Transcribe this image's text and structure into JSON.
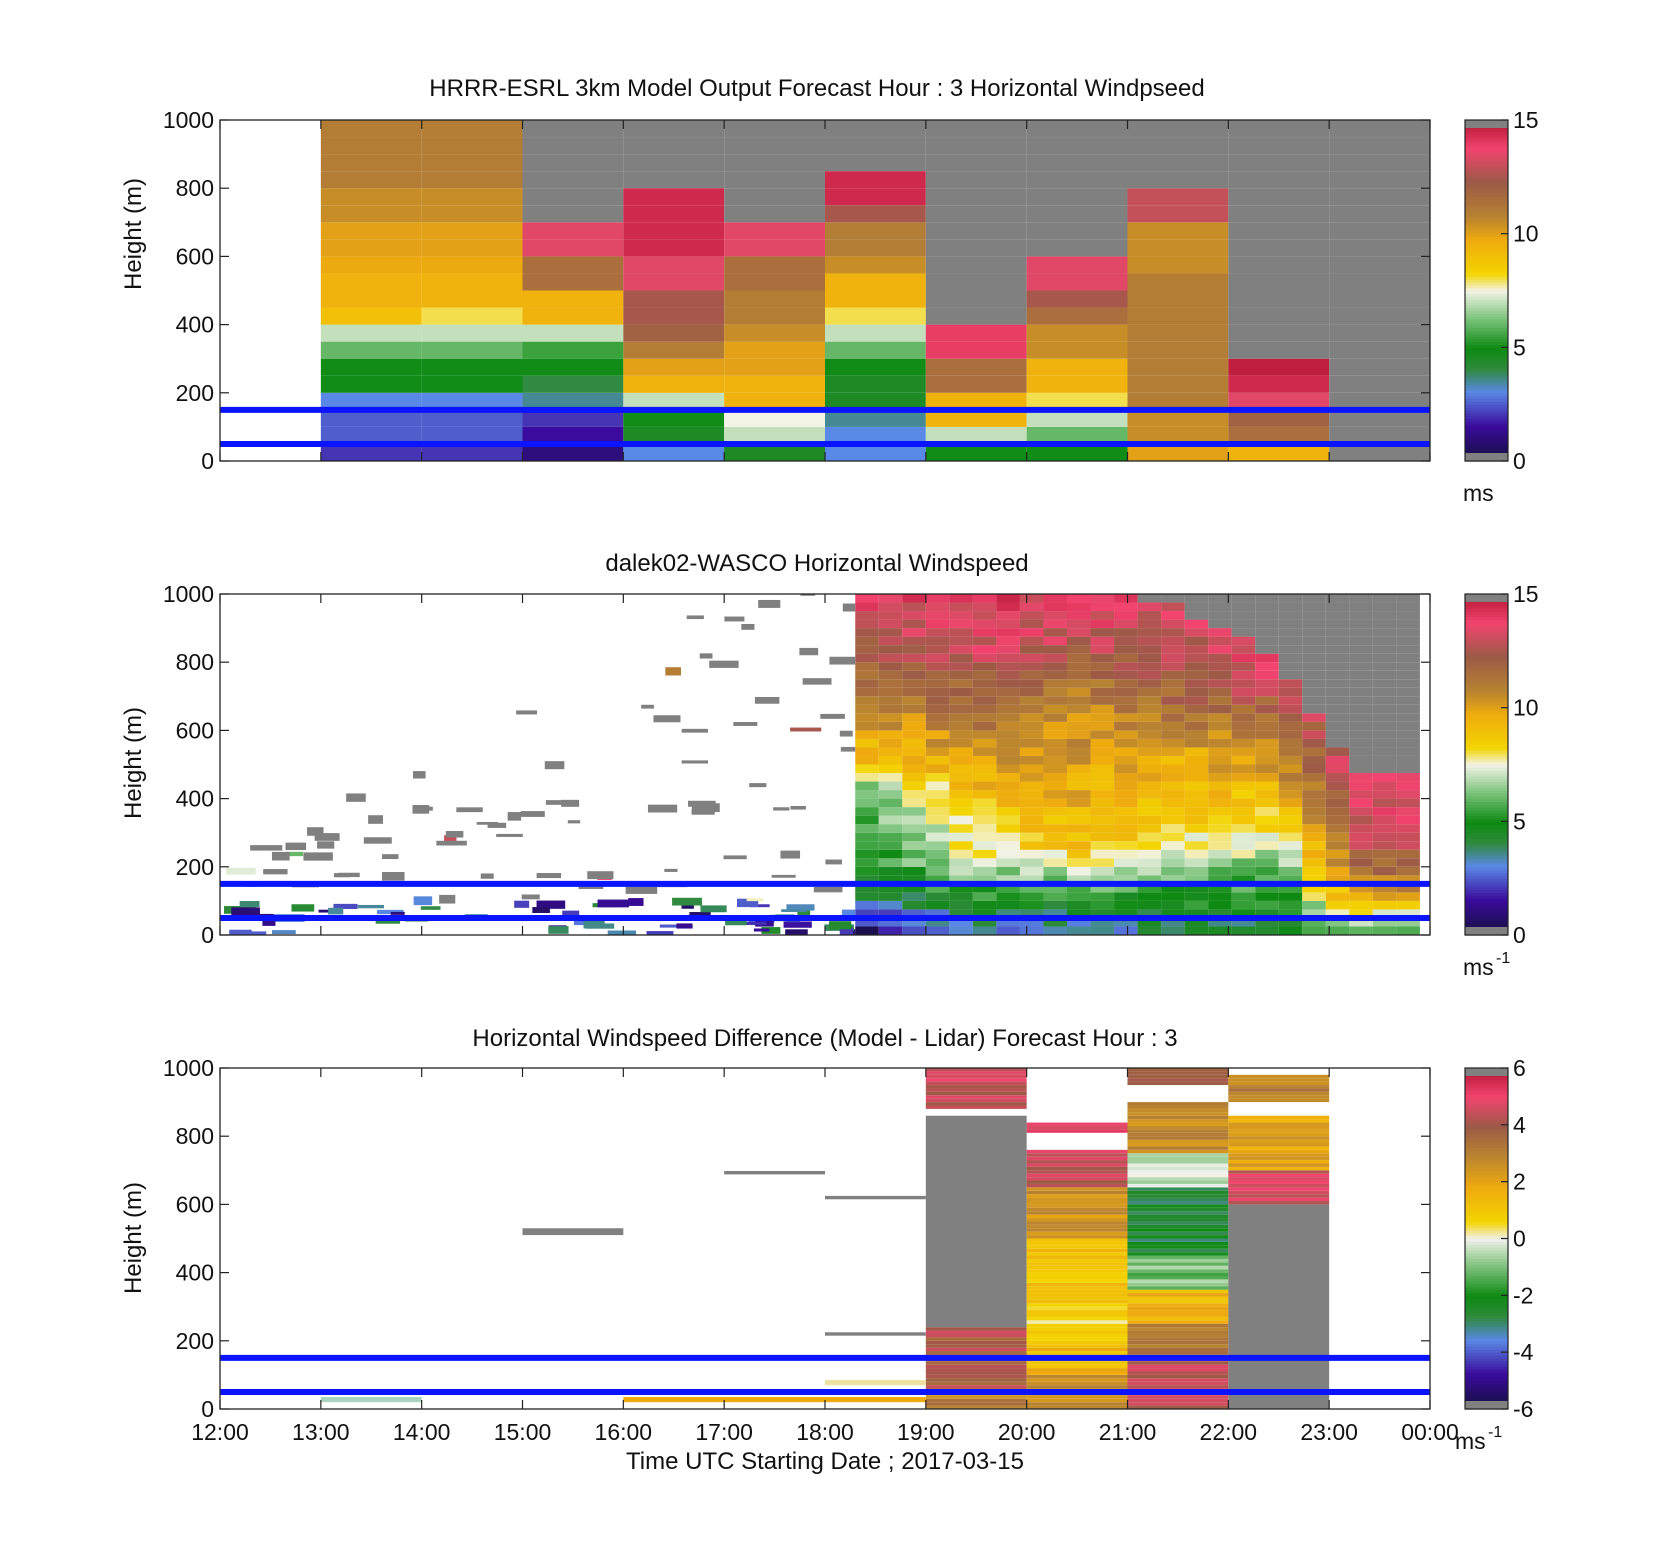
{
  "figure": {
    "xlabel": "Time UTC  Starting Date ; 2017-03-15",
    "x_tick_labels": [
      "12:00",
      "13:00",
      "14:00",
      "15:00",
      "16:00",
      "17:00",
      "18:00",
      "19:00",
      "20:00",
      "21:00",
      "22:00",
      "23:00",
      "00:00"
    ]
  },
  "panels": [
    {
      "title": "HRRR-ESRL 3km Model Output   Forecast Hour : 3 Horizontal Windpseed",
      "ylabel": "Height (m)",
      "y_tick_labels": [
        "0",
        "200",
        "400",
        "600",
        "800",
        "1000"
      ],
      "colorbar": {
        "tick_labels": [
          "0",
          "5",
          "10",
          "15"
        ],
        "unit": "ms",
        "unit_sup": ""
      }
    },
    {
      "title": "dalek02-WASCO  Horizontal Windspeed",
      "ylabel": "Height (m)",
      "y_tick_labels": [
        "0",
        "200",
        "400",
        "600",
        "800",
        "1000"
      ],
      "colorbar": {
        "tick_labels": [
          "0",
          "5",
          "10",
          "15"
        ],
        "unit": "ms",
        "unit_sup": "-1"
      }
    },
    {
      "title": "Horizontal Windspeed Difference (Model - Lidar) Forecast Hour : 3",
      "ylabel": "Height (m)",
      "y_tick_labels": [
        "0",
        "200",
        "400",
        "600",
        "800",
        "1000"
      ],
      "colorbar": {
        "tick_labels": [
          "-6",
          "-4",
          "-2",
          "0",
          "2",
          "4",
          "6"
        ],
        "unit": "ms",
        "unit_sup": "-1"
      }
    }
  ],
  "chart_data": [
    {
      "type": "heatmap",
      "title": "HRRR-ESRL 3km Model Output   Forecast Hour : 3 Horizontal Windpseed",
      "xlabel": "",
      "ylabel": "Height (m)",
      "xlim": [
        12,
        24
      ],
      "ylim": [
        0,
        1000
      ],
      "color_range": [
        0,
        15
      ],
      "colorbar_unit": "ms",
      "reference_lines_m": [
        50,
        150
      ],
      "cell_height_m": 50,
      "columns": [
        {
          "t0": 13,
          "t1": 14,
          "values": [
            2,
            2.5,
            2.5,
            3,
            5,
            5,
            6,
            7,
            9,
            9.5,
            9.5,
            9.8,
            10,
            10,
            10.5,
            10.5,
            11,
            11,
            11,
            11
          ]
        },
        {
          "t0": 14,
          "t1": 15,
          "values": [
            2,
            2.5,
            2.5,
            3,
            5,
            5,
            6,
            7,
            8,
            9.5,
            9.5,
            9.8,
            10,
            10,
            10.5,
            10.5,
            11,
            11,
            11,
            11
          ]
        },
        {
          "t0": 15,
          "t1": 16,
          "values": [
            1,
            1.5,
            2,
            3.5,
            4,
            5,
            5.5,
            7,
            9.5,
            9.5,
            11.5,
            11.5,
            13.5,
            13.5,
            0,
            0,
            0,
            0,
            0,
            0
          ]
        },
        {
          "t0": 16,
          "t1": 17,
          "values": [
            3,
            4.5,
            5,
            7,
            9.5,
            10,
            11,
            12,
            12.5,
            12.5,
            13.5,
            13.5,
            14.5,
            14.5,
            14.5,
            14.5,
            0,
            0,
            0,
            0
          ]
        },
        {
          "t0": 17,
          "t1": 18,
          "values": [
            4.5,
            7,
            7.5,
            9.5,
            9.5,
            10,
            10,
            10.5,
            11,
            11,
            11.5,
            11.5,
            13.5,
            13.5,
            0,
            0,
            0,
            0,
            0,
            0
          ]
        },
        {
          "t0": 18,
          "t1": 19,
          "values": [
            3,
            3,
            3.5,
            4.5,
            4.5,
            5,
            6,
            7,
            8,
            9.5,
            9.5,
            10.5,
            11,
            11,
            12.5,
            14.5,
            14.5,
            0,
            0,
            0
          ]
        },
        {
          "t0": 19,
          "t1": 20,
          "values": [
            5,
            7,
            9.5,
            9.5,
            11.5,
            11.5,
            14,
            14,
            0,
            0,
            0,
            0,
            0,
            0,
            0,
            0,
            0,
            0,
            0,
            0
          ]
        },
        {
          "t0": 20,
          "t1": 21,
          "values": [
            5,
            6,
            7,
            8,
            9.5,
            9.5,
            10.5,
            10.5,
            11.5,
            12.5,
            13.5,
            13.5,
            0,
            0,
            0,
            0,
            0,
            0,
            0,
            0
          ]
        },
        {
          "t0": 21,
          "t1": 22,
          "values": [
            10,
            10.5,
            10.5,
            11,
            11,
            11,
            11,
            11,
            11,
            11,
            11,
            10.5,
            10.5,
            10.5,
            13,
            13,
            0,
            0,
            0,
            0
          ]
        },
        {
          "t0": 22,
          "t1": 23,
          "values": [
            9.5,
            11.5,
            12,
            13.5,
            14.5,
            14.8,
            0,
            0,
            0,
            0,
            0,
            0,
            0,
            0,
            0,
            0,
            0,
            0,
            0,
            0
          ]
        },
        {
          "t0": 23,
          "t1": 24,
          "values": []
        }
      ],
      "no_data_columns": [
        [
          19,
          20,
          "above 350"
        ],
        [
          22,
          23,
          "above 250"
        ]
      ]
    },
    {
      "type": "heatmap",
      "title": "dalek02-WASCO  Horizontal Windspeed",
      "xlabel": "",
      "ylabel": "Height (m)",
      "xlim": [
        12,
        24
      ],
      "ylim": [
        0,
        1000
      ],
      "color_range": [
        0,
        15
      ],
      "colorbar_unit": "ms-1",
      "reference_lines_m": [
        50,
        150
      ],
      "cell_height_m": 25,
      "sample_columns": [
        {
          "t": 18.43,
          "top_m": 1000,
          "profile": [
            [
              0,
              1
            ],
            [
              100,
              4
            ],
            [
              200,
              5
            ],
            [
              400,
              6
            ],
            [
              500,
              9
            ],
            [
              700,
              11
            ],
            [
              900,
              13
            ],
            [
              1000,
              14
            ]
          ]
        },
        {
          "t": 19.5,
          "top_m": 1000,
          "profile": [
            [
              0,
              3
            ],
            [
              100,
              5
            ],
            [
              250,
              8
            ],
            [
              400,
              9
            ],
            [
              600,
              11
            ],
            [
              800,
              13
            ],
            [
              1000,
              14
            ]
          ]
        },
        {
          "t": 20.5,
          "top_m": 1000,
          "profile": [
            [
              0,
              3
            ],
            [
              100,
              5
            ],
            [
              250,
              9
            ],
            [
              500,
              10
            ],
            [
              700,
              11
            ],
            [
              850,
              13
            ],
            [
              1000,
              14
            ]
          ]
        },
        {
          "t": 21.5,
          "top_m": 950,
          "profile": [
            [
              0,
              4
            ],
            [
              100,
              5
            ],
            [
              250,
              8
            ],
            [
              500,
              9.5
            ],
            [
              700,
              12
            ],
            [
              950,
              13.5
            ]
          ]
        },
        {
          "t": 22.5,
          "top_m": 800,
          "profile": [
            [
              0,
              4
            ],
            [
              100,
              5
            ],
            [
              250,
              7
            ],
            [
              450,
              10
            ],
            [
              650,
              12
            ],
            [
              800,
              14
            ]
          ]
        },
        {
          "t": 23.3,
          "top_m": 450,
          "profile": [
            [
              0,
              6
            ],
            [
              100,
              10
            ],
            [
              200,
              12
            ],
            [
              300,
              13
            ],
            [
              450,
              14
            ]
          ]
        }
      ],
      "sparse_returns_before": "18:20"
    },
    {
      "type": "heatmap",
      "title": "Horizontal Windspeed Difference (Model - Lidar) Forecast Hour : 3",
      "xlabel": "Time UTC  Starting Date ; 2017-03-15",
      "ylabel": "Height (m)",
      "xlim": [
        12,
        24
      ],
      "ylim": [
        0,
        1000
      ],
      "color_range": [
        -6,
        6
      ],
      "colorbar_unit": "ms-1",
      "reference_lines_m": [
        50,
        150
      ],
      "columns": [
        {
          "t0": 19,
          "t1": 20,
          "segments": [
            [
              0,
              60,
              3
            ],
            [
              60,
              210,
              4
            ],
            [
              210,
              240,
              4.5
            ],
            [
              240,
              860,
              "nan"
            ],
            [
              880,
              900,
              4.2
            ],
            [
              900,
              1000,
              4.5
            ]
          ]
        },
        {
          "t0": 20,
          "t1": 21,
          "segments": [
            [
              0,
              100,
              2.5
            ],
            [
              100,
              200,
              1.5
            ],
            [
              200,
              300,
              0.5
            ],
            [
              300,
              500,
              1.2
            ],
            [
              500,
              650,
              2.5
            ],
            [
              650,
              760,
              4.3
            ],
            [
              810,
              840,
              4.8
            ]
          ]
        },
        {
          "t0": 21,
          "t1": 22,
          "segments": [
            [
              0,
              150,
              4.5
            ],
            [
              150,
              250,
              3
            ],
            [
              250,
              350,
              1.5
            ],
            [
              350,
              450,
              -1
            ],
            [
              450,
              650,
              -2.5
            ],
            [
              650,
              750,
              -0.5
            ],
            [
              750,
              900,
              2.8
            ],
            [
              950,
              1000,
              4
            ]
          ]
        },
        {
          "t0": 22,
          "t1": 23,
          "segments": [
            [
              0,
              600,
              "nan"
            ],
            [
              600,
              700,
              4.5
            ],
            [
              700,
              860,
              2
            ],
            [
              900,
              980,
              3
            ]
          ]
        }
      ],
      "no_data_traces": [
        [
          13,
          14,
          "near 0 m"
        ],
        [
          15,
          16,
          "near 520 m"
        ],
        [
          17,
          18,
          "near 690 m"
        ],
        [
          18,
          19,
          "near 620 m and 220 m"
        ]
      ]
    }
  ]
}
